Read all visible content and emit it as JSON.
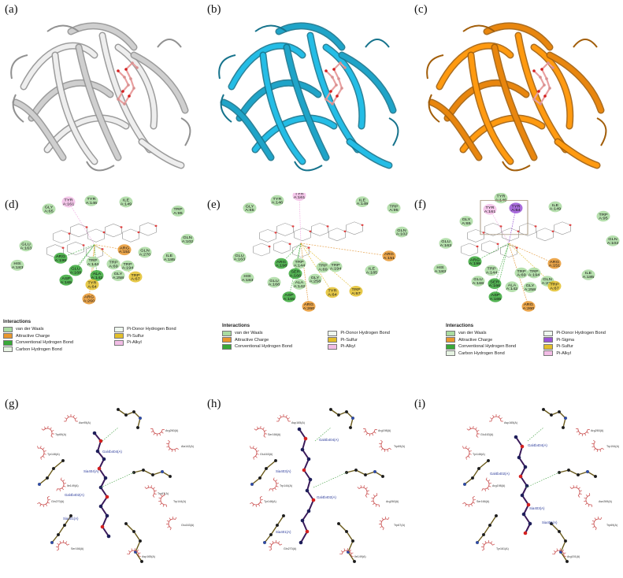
{
  "panels": {
    "a": "(a)",
    "b": "(b)",
    "c": "(c)",
    "d": "(d)",
    "e": "(e)",
    "f": "(f)",
    "g": "(g)",
    "h": "(h)",
    "i": "(i)"
  },
  "colors": {
    "protein_a": "#cfcfcf",
    "protein_b": "#1fa4c8",
    "protein_c": "#e8860e",
    "vdw": "#a9dba0",
    "attractive": "#e8962e",
    "conv_hbond": "#38a838",
    "carbon_hbond": "#e6f3e2",
    "pi_donor": "#eef7ee",
    "pi_sulfur": "#e3bf2a",
    "pi_alkyl": "#f2bde6",
    "pi_sigma": "#9a53d6",
    "ligand_atom": "#1e1e5a",
    "oxygen": "#d42020",
    "hbond_line": "#55aa55"
  },
  "panel_d": {
    "residues": [
      {
        "id": "gly65",
        "text": "GLY\nA:65",
        "type": "vdw"
      },
      {
        "id": "tyr146",
        "text": "TYR\nA:146",
        "type": "vdw"
      },
      {
        "id": "ile149",
        "text": "ILE\nA:149",
        "type": "vdw"
      },
      {
        "id": "tyr161",
        "text": "TYR\nA:161",
        "type": "alkyl"
      },
      {
        "id": "trp95",
        "text": "TRP\nA:95",
        "type": "vdw"
      },
      {
        "id": "gln102",
        "text": "GLN\nA:102",
        "type": "vdw"
      },
      {
        "id": "glu163",
        "text": "GLU\nA:163",
        "type": "vdw"
      },
      {
        "id": "arg151",
        "text": "ARG\nA:151",
        "type": "attractive"
      },
      {
        "id": "ile185",
        "text": "ILE\nA:185",
        "type": "vdw"
      },
      {
        "id": "gln270",
        "text": "GLN\nA:270",
        "type": "vdw"
      },
      {
        "id": "trp194",
        "text": "TRP\nA:194",
        "type": "vdw"
      },
      {
        "id": "trp69",
        "text": "TRP\nA:69",
        "type": "vdw"
      },
      {
        "id": "trp144",
        "text": "TRP\nA:144",
        "type": "vdw"
      },
      {
        "id": "his183",
        "text": "HIS\nA:183",
        "type": "vdw"
      },
      {
        "id": "arg198",
        "text": "ARG\nA:198",
        "type": "hbond"
      },
      {
        "id": "glu168",
        "text": "GLU\nA:168",
        "type": "hbond"
      },
      {
        "id": "ala142",
        "text": "ALA\nA:142",
        "type": "hbond"
      },
      {
        "id": "gly258",
        "text": "GLY\nA:258",
        "type": "vdw"
      },
      {
        "id": "trp67",
        "text": "TRP\nA:67",
        "type": "sulfur"
      },
      {
        "id": "asp165",
        "text": "ASP\nA:165",
        "type": "hbond"
      },
      {
        "id": "tyr64",
        "text": "TYR\nA:64",
        "type": "sulfur"
      },
      {
        "id": "arg260",
        "text": "ARG\nA:260",
        "type": "attractive"
      }
    ],
    "legend": {
      "title": "Interactions",
      "left": [
        "van der Waals",
        "Attractive Charge",
        "Conventional Hydrogen Bond",
        "Carbon Hydrogen Bond"
      ],
      "right": [
        "Pi-Donor Hydrogen Bond",
        "Pi-Sulfur",
        "Pi-Alkyl"
      ]
    }
  },
  "panel_e": {
    "residues": [
      {
        "id": "gly65",
        "text": "GLY\nA:65",
        "type": "vdw"
      },
      {
        "id": "tyr146",
        "text": "TYR\nA:146",
        "type": "vdw"
      },
      {
        "id": "tyr161",
        "text": "TYR\nA:161",
        "type": "alkyl"
      },
      {
        "id": "ile149",
        "text": "ILE\nA:149",
        "type": "vdw"
      },
      {
        "id": "trp95",
        "text": "TRP\nA:95",
        "type": "vdw"
      },
      {
        "id": "gln102",
        "text": "GLN\nA:102",
        "type": "vdw"
      },
      {
        "id": "glu163",
        "text": "GLU\nA:163",
        "type": "vdw"
      },
      {
        "id": "arg151",
        "text": "ARG\nA:151",
        "type": "attractive"
      },
      {
        "id": "arg198",
        "text": "ARG\nA:198",
        "type": "hbond"
      },
      {
        "id": "trp144",
        "text": "TRP\nA:144",
        "type": "vdw"
      },
      {
        "id": "trp69",
        "text": "TRP\nA:69",
        "type": "vdw"
      },
      {
        "id": "trp194",
        "text": "TRP\nA:194",
        "type": "vdw"
      },
      {
        "id": "ile185",
        "text": "ILE\nA:185",
        "type": "vdw"
      },
      {
        "id": "his183",
        "text": "HIS\nA:183",
        "type": "vdw"
      },
      {
        "id": "glu168",
        "text": "GLU\nA:168",
        "type": "vdw"
      },
      {
        "id": "ser166",
        "text": "SER\nA:166",
        "type": "hbond"
      },
      {
        "id": "gly258",
        "text": "GLY\nA:258",
        "type": "vdw"
      },
      {
        "id": "ala142",
        "text": "ALA\nA:142",
        "type": "vdw"
      },
      {
        "id": "asp165",
        "text": "ASP\nA:165",
        "type": "hbond"
      },
      {
        "id": "tyr64",
        "text": "TYR\nA:64",
        "type": "sulfur"
      },
      {
        "id": "trp67",
        "text": "TRP\nA:67",
        "type": "sulfur"
      },
      {
        "id": "arg260",
        "text": "ARG\nA:260",
        "type": "attractive"
      }
    ],
    "legend": {
      "title": "Interactions",
      "left": [
        "van der Waals",
        "Attractive Charge",
        "Conventional Hydrogen Bond"
      ],
      "right": [
        "Pi-Donor Hydrogen Bond",
        "Pi-Sulfur",
        "Pi-Alkyl"
      ]
    }
  },
  "panel_f": {
    "residues": [
      {
        "id": "tyr146",
        "text": "TYR\nA:146",
        "type": "vdw"
      },
      {
        "id": "tyr161",
        "text": "TYR\nA:161",
        "type": "alkyl"
      },
      {
        "id": "tyr64",
        "text": "TYR\nA:64",
        "type": "sigma"
      },
      {
        "id": "ile149",
        "text": "ILE\nA:149",
        "type": "vdw"
      },
      {
        "id": "trp95",
        "text": "TRP\nA:95",
        "type": "vdw"
      },
      {
        "id": "gly65",
        "text": "GLY\nA:65",
        "type": "vdw"
      },
      {
        "id": "gln102",
        "text": "GLN\nA:102",
        "type": "vdw"
      },
      {
        "id": "glu163",
        "text": "GLU\nA:163",
        "type": "vdw"
      },
      {
        "id": "arg151",
        "text": "ARG\nA:151",
        "type": "attractive"
      },
      {
        "id": "his183",
        "text": "HIS\nA:183",
        "type": "vdw"
      },
      {
        "id": "arg198",
        "text": "ARG\nA:198",
        "type": "hbond"
      },
      {
        "id": "trp144",
        "text": "TRP\nA:144",
        "type": "vdw"
      },
      {
        "id": "trp69",
        "text": "TRP\nA:69",
        "type": "vdw"
      },
      {
        "id": "trp194",
        "text": "TRP\nA:194",
        "type": "vdw"
      },
      {
        "id": "ile185",
        "text": "ILE\nA:185",
        "type": "vdw"
      },
      {
        "id": "glu168",
        "text": "GLU\nA:168",
        "type": "vdw"
      },
      {
        "id": "ser166",
        "text": "SER\nA:166",
        "type": "hbond"
      },
      {
        "id": "gln270",
        "text": "GLN\nA:270",
        "type": "vdw"
      },
      {
        "id": "trp67",
        "text": "TRP\nA:67",
        "type": "sulfur"
      },
      {
        "id": "ala142",
        "text": "ALA\nA:142",
        "type": "vdw"
      },
      {
        "id": "gly258",
        "text": "GLY\nA:258",
        "type": "vdw"
      },
      {
        "id": "asp165",
        "text": "ASP\nA:165",
        "type": "hbond"
      },
      {
        "id": "arg260",
        "text": "ARG\nA:260",
        "type": "attractive"
      }
    ],
    "legend": {
      "title": "Interactions",
      "left": [
        "van der Waals",
        "Attractive Charge",
        "Conventional Hydrogen Bond",
        "Carbon Hydrogen Bond"
      ],
      "right": [
        "Pi-Donor Hydrogen Bond",
        "Pi-Sigma",
        "Pi-Sulfur",
        "Pi-Alkyl"
      ]
    }
  },
  "panel_g": {
    "labels": [
      "Gal4b404(A)",
      "Sia404(A)",
      "Gal4b402(A)",
      "Sia401(A)"
    ],
    "hydrophobic": [
      "Asn95(A)",
      "Trp69(A)",
      "Tyr146(A)",
      "Ile149(A)",
      "Gln270(A)",
      "Arg260(A)",
      "Ala142(A)",
      "Trp144(A)",
      "Glu163(A)",
      "Ser166(A)",
      "Asp165(A)",
      "Trp67(A)"
    ]
  },
  "panel_h": {
    "labels": [
      "Gal4b404(A)",
      "Sia403(A)",
      "Gal4b402(A)",
      "Sia401(A)"
    ],
    "hydrophobic": [
      "Asp165(A)",
      "Ser166(A)",
      "Glu163(A)",
      "Trp144(A)",
      "Tyr146(A)",
      "Arg198(A)",
      "Trp69(A)",
      "Arg260(A)",
      "Trp67(A)",
      "Gln270(A)",
      "Ile149(A)"
    ]
  },
  "panel_i": {
    "labels": [
      "Gal4b404(A)",
      "Gal4b402(A)",
      "Sia403(A)",
      "Sia401(A)"
    ],
    "hydrophobic": [
      "Asp165(A)",
      "Glu163(A)",
      "Tyr146(A)",
      "Arg198(A)",
      "Ser166(A)",
      "Arg260(A)",
      "Trp194(A)",
      "Asn269(A)",
      "Trp69(A)",
      "Tyr161(A)",
      "Arg151(A)"
    ]
  }
}
